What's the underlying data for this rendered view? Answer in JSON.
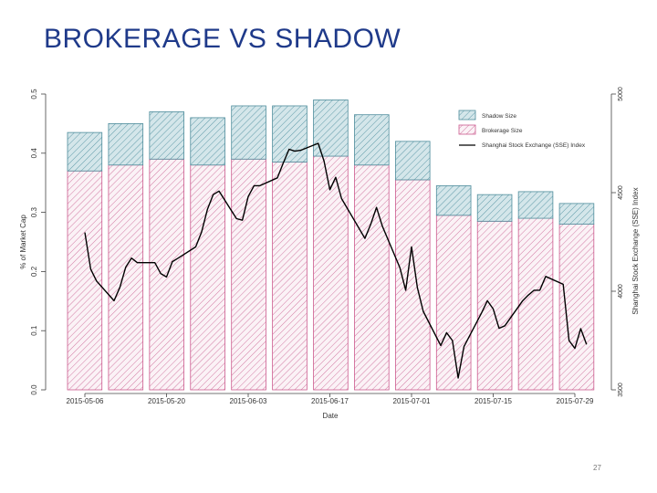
{
  "slide": {
    "title": "BROKERAGE VS SHADOW",
    "page_number": "27"
  },
  "chart_data": {
    "type": "bar",
    "xlabel": "Date",
    "ylabel": "% of Market Cap",
    "y2label": "Shanghai Stock Exchange (SSE) Index",
    "ylim": [
      0,
      0.5
    ],
    "y2lim": [
      3500,
      5000
    ],
    "yticks": [
      "0.0",
      "0.1",
      "0.2",
      "0.3",
      "0.4",
      "0.5"
    ],
    "y2ticks": [
      "3500",
      "4000",
      "4500",
      "5000"
    ],
    "xticks": [
      "2015-05-06",
      "2015-05-20",
      "2015-06-03",
      "2015-06-17",
      "2015-07-01",
      "2015-07-15",
      "2015-07-29"
    ],
    "legend_position": "top-right",
    "legend": [
      "Shadow Size",
      "Brokerage Size",
      "Shanghai Stock Exchange (SSE) Index"
    ],
    "bars": {
      "brokerage_size": [
        0.37,
        0.38,
        0.39,
        0.38,
        0.39,
        0.385,
        0.395,
        0.38,
        0.355,
        0.295,
        0.285,
        0.29,
        0.28
      ],
      "shadow_size": [
        0.065,
        0.07,
        0.08,
        0.08,
        0.09,
        0.095,
        0.095,
        0.085,
        0.065,
        0.05,
        0.045,
        0.045,
        0.035
      ]
    },
    "sse_index": {
      "dates": [
        "2015-05-06",
        "2015-05-07",
        "2015-05-08",
        "2015-05-11",
        "2015-05-12",
        "2015-05-13",
        "2015-05-14",
        "2015-05-15",
        "2015-05-18",
        "2015-05-19",
        "2015-05-20",
        "2015-05-21",
        "2015-05-22",
        "2015-05-25",
        "2015-05-26",
        "2015-05-27",
        "2015-05-28",
        "2015-05-29",
        "2015-06-01",
        "2015-06-02",
        "2015-06-03",
        "2015-06-04",
        "2015-06-05",
        "2015-06-08",
        "2015-06-09",
        "2015-06-10",
        "2015-06-11",
        "2015-06-12",
        "2015-06-15",
        "2015-06-16",
        "2015-06-17",
        "2015-06-18",
        "2015-06-19",
        "2015-06-23",
        "2015-06-24",
        "2015-06-25",
        "2015-06-26",
        "2015-06-29",
        "2015-06-30",
        "2015-07-01",
        "2015-07-02",
        "2015-07-03",
        "2015-07-06",
        "2015-07-07",
        "2015-07-08",
        "2015-07-09",
        "2015-07-10",
        "2015-07-13",
        "2015-07-14",
        "2015-07-15",
        "2015-07-16",
        "2015-07-17",
        "2015-07-20",
        "2015-07-21",
        "2015-07-22",
        "2015-07-23",
        "2015-07-24",
        "2015-07-27",
        "2015-07-28",
        "2015-07-29",
        "2015-07-30",
        "2015-07-31"
      ],
      "values": [
        4298,
        4112,
        4052,
        3952,
        4020,
        4122,
        4168,
        4145,
        4145,
        4090,
        4072,
        4150,
        4168,
        4225,
        4300,
        4415,
        4490,
        4508,
        4368,
        4360,
        4480,
        4535,
        4535,
        4575,
        4650,
        4720,
        4710,
        4715,
        4750,
        4660,
        4515,
        4578,
        4470,
        4268,
        4340,
        4425,
        4330,
        4120,
        4005,
        4225,
        4018,
        3898,
        3725,
        3790,
        3750,
        3560,
        3720,
        3890,
        3952,
        3910,
        3812,
        3825,
        3950,
        3980,
        4005,
        4005,
        4075,
        4035,
        3750,
        3710,
        3810,
        3730
      ]
    }
  }
}
